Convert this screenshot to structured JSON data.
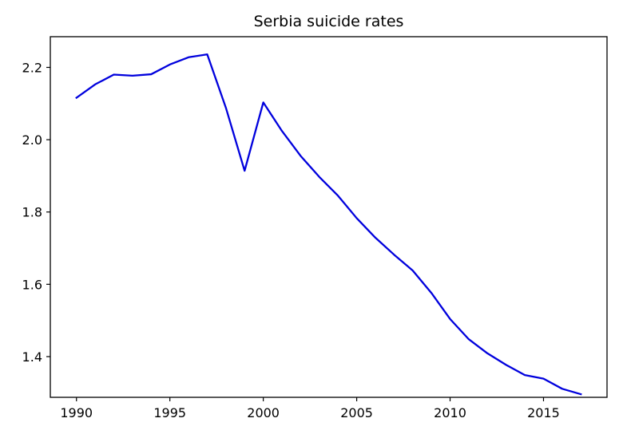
{
  "chart_data": {
    "type": "line",
    "title": "Serbia suicide rates",
    "xlabel": "",
    "ylabel": "",
    "xlim": [
      1988.6,
      2018.4
    ],
    "ylim": [
      1.2874,
      2.2849
    ],
    "x_ticks": [
      1990,
      1995,
      2000,
      2005,
      2010,
      2015
    ],
    "y_ticks": [
      1.4,
      1.6,
      1.8,
      2.0,
      2.2
    ],
    "x_tick_labels": [
      "1990",
      "1995",
      "2000",
      "2005",
      "2010",
      "2015"
    ],
    "y_tick_labels": [
      "1.4",
      "1.6",
      "1.8",
      "2.0",
      "2.2"
    ],
    "grid": false,
    "series": [
      {
        "color": "#0000dd",
        "x": [
          1990,
          1991,
          1992,
          1993,
          1994,
          1995,
          1996,
          1997,
          1998,
          1999,
          2000,
          2001,
          2002,
          2003,
          2004,
          2005,
          2006,
          2007,
          2008,
          2009,
          2010,
          2011,
          2012,
          2013,
          2014,
          2015,
          2016,
          2017
        ],
        "y": [
          2.116,
          2.153,
          2.18,
          2.177,
          2.181,
          2.208,
          2.228,
          2.236,
          2.088,
          1.914,
          2.103,
          2.024,
          1.955,
          1.897,
          1.845,
          1.783,
          1.729,
          1.682,
          1.638,
          1.576,
          1.504,
          1.448,
          1.409,
          1.377,
          1.349,
          1.339,
          1.311,
          1.296
        ]
      }
    ]
  }
}
